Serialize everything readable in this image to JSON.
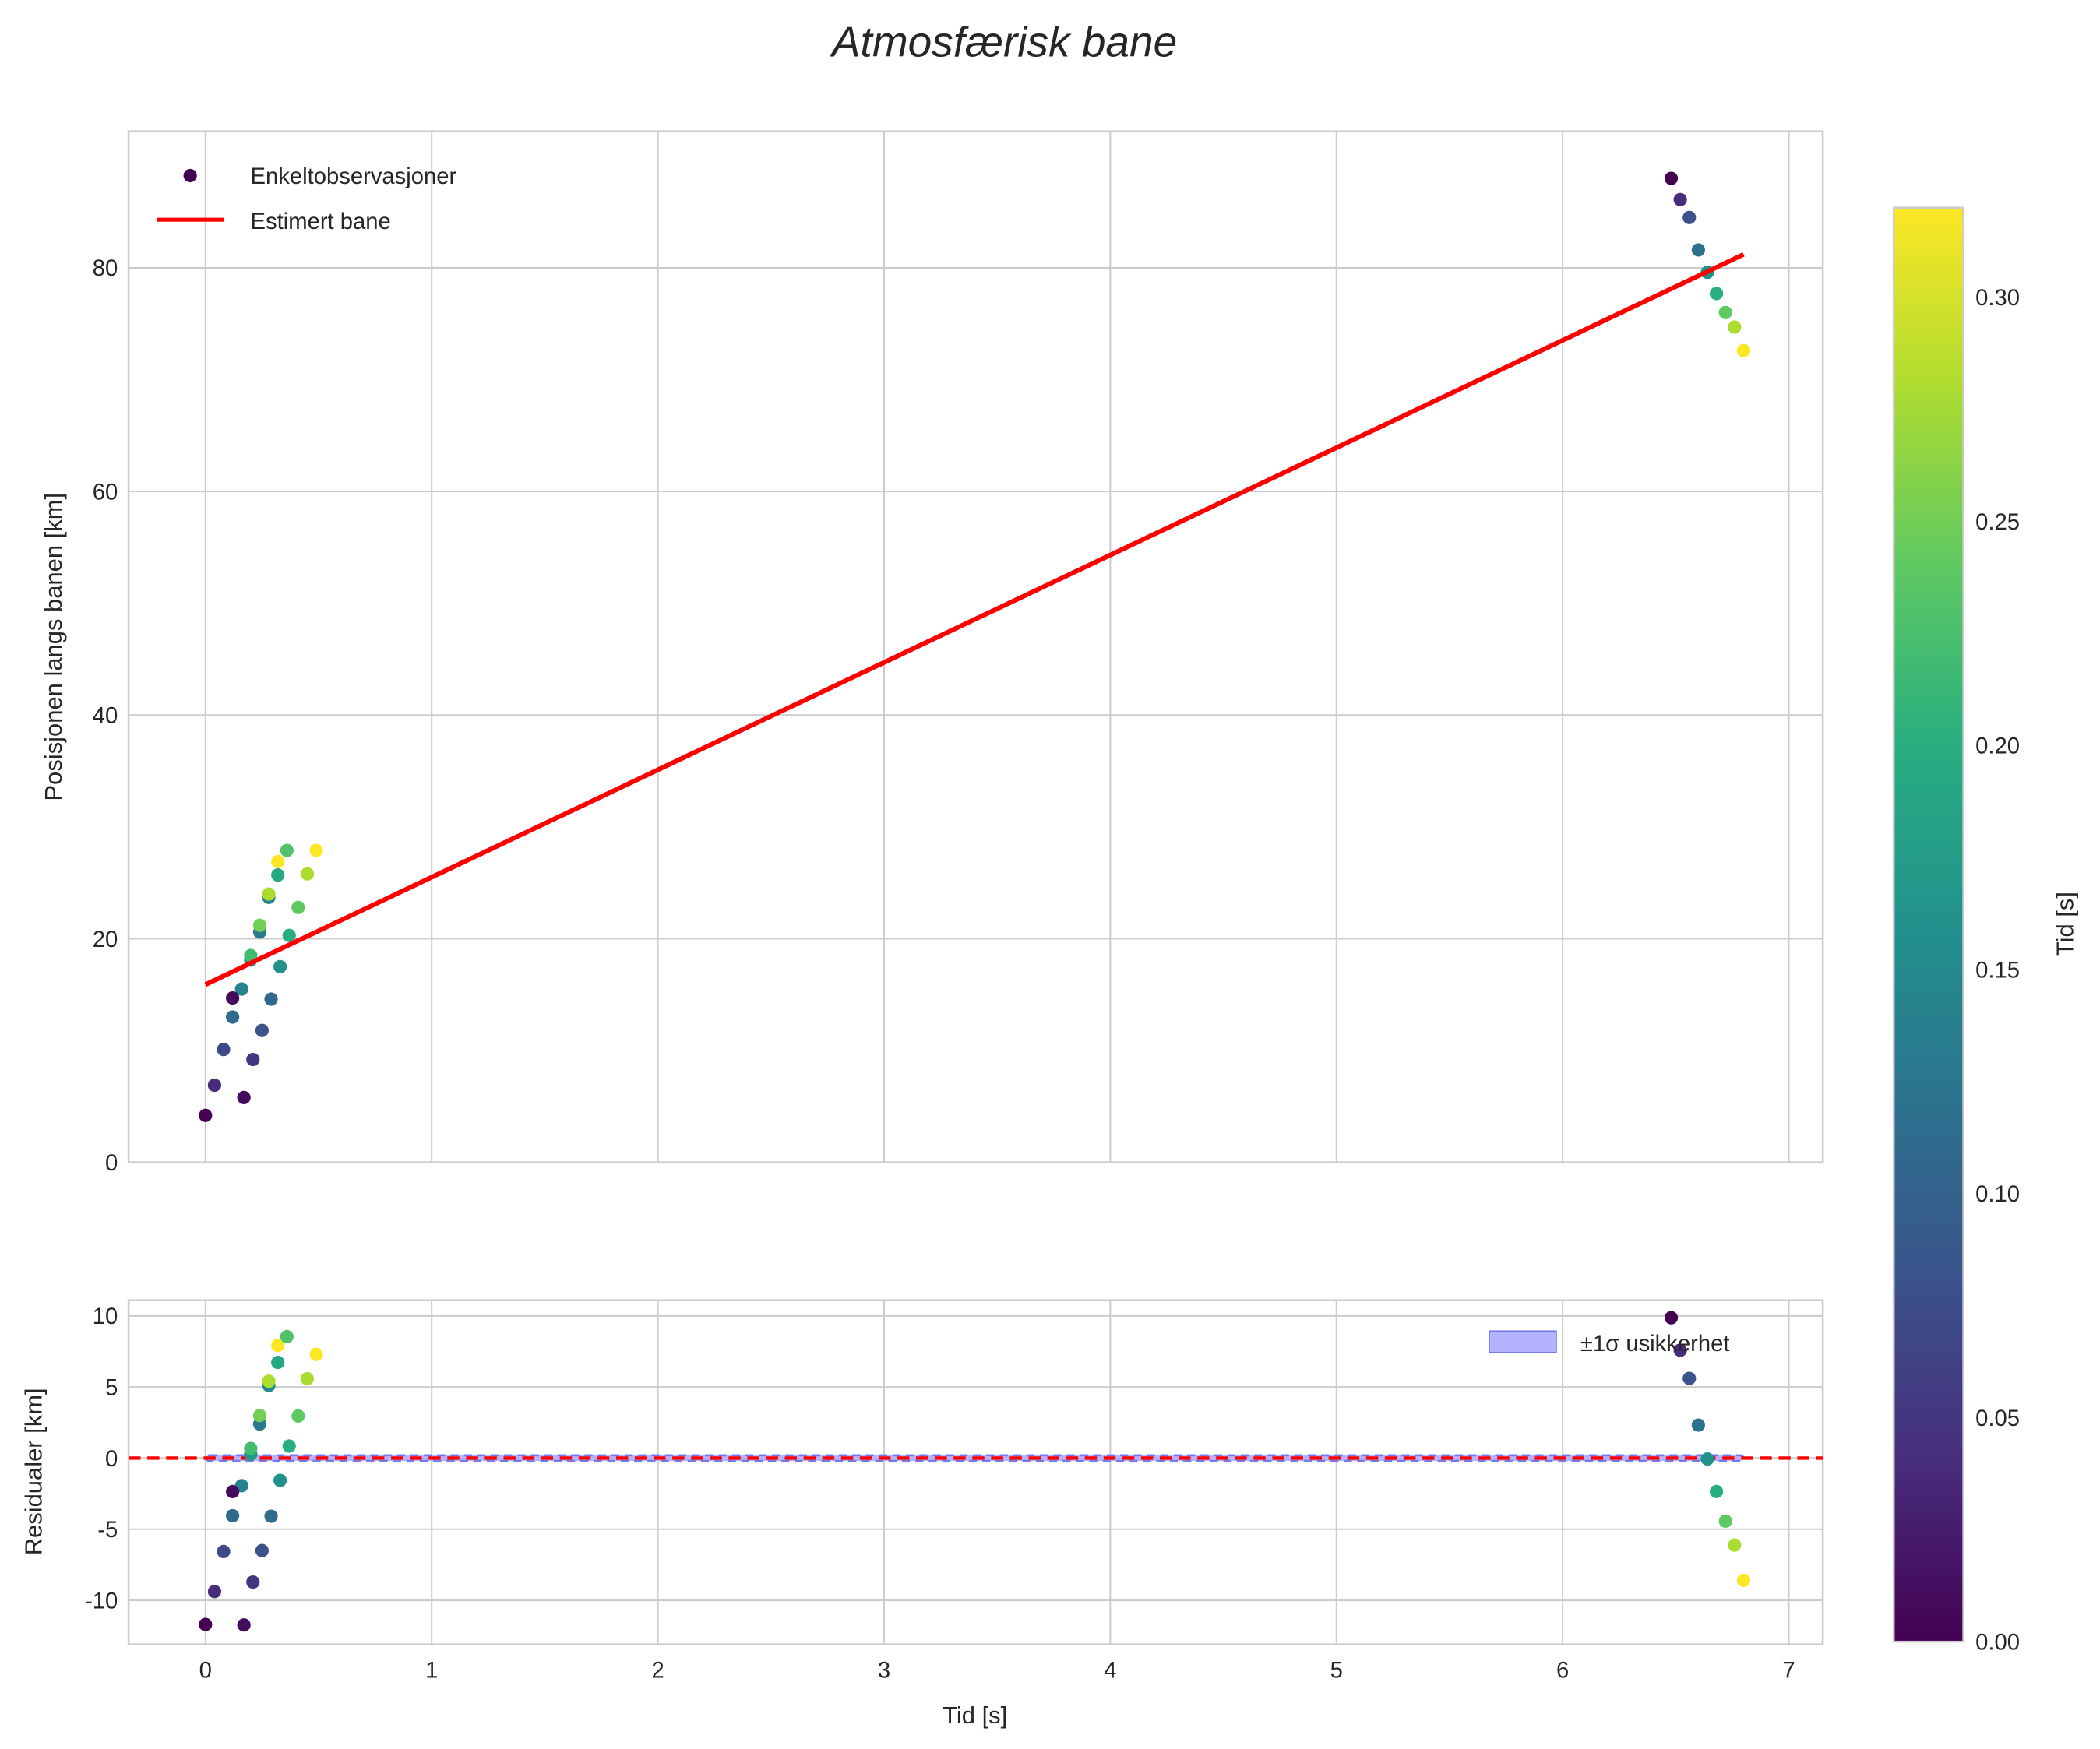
{
  "chart_data": [
    {
      "type": "scatter",
      "title": "Atmosfærisk bane",
      "xlabel": "",
      "ylabel": "Posisjonen langs banen [km]",
      "xlim": [
        -0.34,
        7.15
      ],
      "ylim": [
        0,
        92.2
      ],
      "xticks": [
        0,
        1,
        2,
        3,
        4,
        5,
        6,
        7
      ],
      "yticks": [
        0,
        20,
        40,
        60,
        80
      ],
      "grid": true,
      "legend": {
        "placement": "top-left",
        "entries": [
          "Enkeltobservasjoner",
          "Estimert bane"
        ]
      },
      "fit_line": {
        "name": "Estimert bane",
        "color": "#ff0000",
        "x": [
          0,
          6.8
        ],
        "y": [
          15.9,
          81.2
        ]
      },
      "points": [
        {
          "t": 0.0,
          "y": 4.2,
          "c": 0.0
        },
        {
          "t": 0.04,
          "y": 6.9,
          "c": 0.04
        },
        {
          "t": 0.08,
          "y": 10.1,
          "c": 0.07
        },
        {
          "t": 0.12,
          "y": 13.0,
          "c": 0.11
        },
        {
          "t": 0.16,
          "y": 15.5,
          "c": 0.14
        },
        {
          "t": 0.2,
          "y": 18.1,
          "c": 0.17
        },
        {
          "t": 0.2,
          "y": 18.5,
          "c": 0.22
        },
        {
          "t": 0.24,
          "y": 20.6,
          "c": 0.13
        },
        {
          "t": 0.24,
          "y": 21.2,
          "c": 0.25
        },
        {
          "t": 0.28,
          "y": 23.7,
          "c": 0.15
        },
        {
          "t": 0.28,
          "y": 24.0,
          "c": 0.28
        },
        {
          "t": 0.32,
          "y": 25.7,
          "c": 0.19
        },
        {
          "t": 0.32,
          "y": 26.9,
          "c": 0.32
        },
        {
          "t": 0.36,
          "y": 27.9,
          "c": 0.23
        },
        {
          "t": 0.12,
          "y": 14.7,
          "c": 0.01
        },
        {
          "t": 0.17,
          "y": 5.8,
          "c": 0.01
        },
        {
          "t": 0.21,
          "y": 9.2,
          "c": 0.05
        },
        {
          "t": 0.25,
          "y": 11.8,
          "c": 0.08
        },
        {
          "t": 0.29,
          "y": 14.6,
          "c": 0.11
        },
        {
          "t": 0.33,
          "y": 17.5,
          "c": 0.16
        },
        {
          "t": 0.37,
          "y": 20.3,
          "c": 0.2
        },
        {
          "t": 0.41,
          "y": 22.8,
          "c": 0.24
        },
        {
          "t": 0.45,
          "y": 25.8,
          "c": 0.28
        },
        {
          "t": 0.49,
          "y": 27.9,
          "c": 0.32
        },
        {
          "t": 6.48,
          "y": 88.0,
          "c": 0.0
        },
        {
          "t": 6.52,
          "y": 86.1,
          "c": 0.04
        },
        {
          "t": 6.56,
          "y": 84.5,
          "c": 0.08
        },
        {
          "t": 6.6,
          "y": 81.6,
          "c": 0.12
        },
        {
          "t": 6.64,
          "y": 79.6,
          "c": 0.16
        },
        {
          "t": 6.68,
          "y": 77.7,
          "c": 0.2
        },
        {
          "t": 6.72,
          "y": 76.0,
          "c": 0.24
        },
        {
          "t": 6.76,
          "y": 74.7,
          "c": 0.28
        },
        {
          "t": 6.8,
          "y": 72.6,
          "c": 0.32
        }
      ]
    },
    {
      "type": "scatter",
      "xlabel": "Tid [s]",
      "ylabel": "Residualer [km]",
      "xlim": [
        -0.34,
        7.15
      ],
      "ylim": [
        -13.1,
        11.1
      ],
      "xticks": [
        0,
        1,
        2,
        3,
        4,
        5,
        6,
        7
      ],
      "yticks": [
        -10,
        -5,
        0,
        5,
        10
      ],
      "grid": true,
      "legend": {
        "placement": "top-right",
        "entries": [
          "±1σ usikkerhet"
        ]
      },
      "zero_line_color": "#ff0000",
      "band_color": "#b3b3ff",
      "sigma": 0.2,
      "residuals": "position minus Estimert bane"
    }
  ],
  "colorbar": {
    "label": "Tid [s]",
    "range": [
      0,
      0.32
    ],
    "ticks": [
      "0.00",
      "0.05",
      "0.10",
      "0.15",
      "0.20",
      "0.25",
      "0.30"
    ],
    "colormap": "viridis"
  },
  "labels": {
    "title": "Atmosfærisk bane",
    "legend1": "Enkeltobservasjoner",
    "legend2": "Estimert bane",
    "legend3": "±1σ usikkerhet",
    "ylabel1": "Posisjonen langs banen [km]",
    "ylabel2": "Residualer [km]",
    "xlabel": "Tid [s]",
    "cbar": "Tid [s]"
  }
}
